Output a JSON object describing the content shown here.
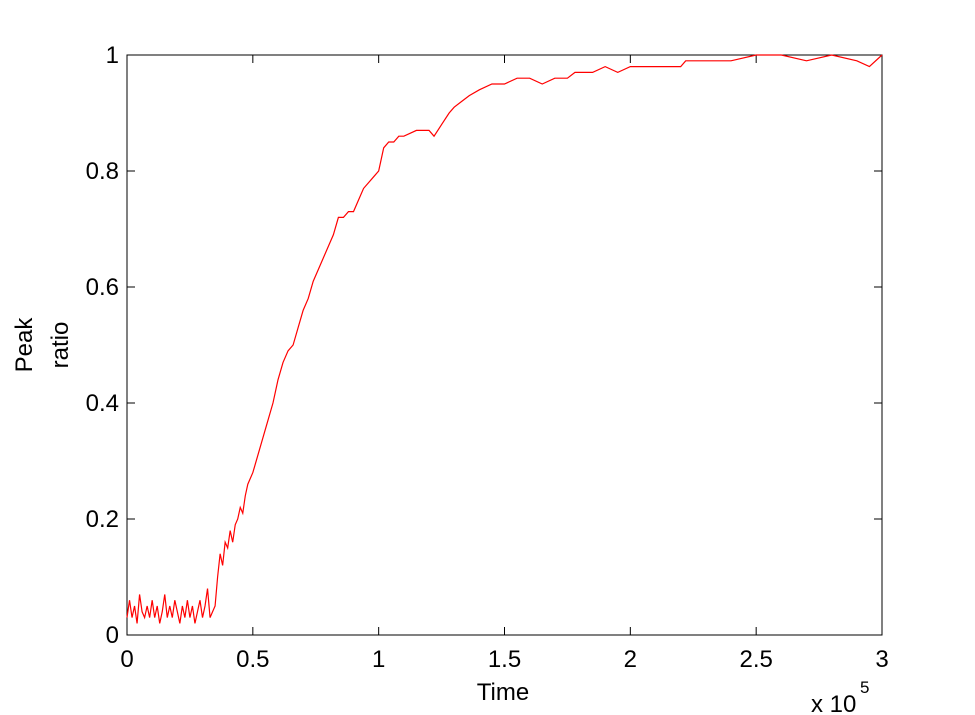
{
  "chart_data": {
    "type": "line",
    "xlabel": "Time",
    "ylabel": [
      "Peak",
      "ratio"
    ],
    "x_scale_label": "x 10",
    "x_scale_exponent": "5",
    "color": "#ff0000",
    "xlim": [
      0,
      3
    ],
    "xticks": [
      0,
      0.5,
      1,
      1.5,
      2,
      2.5,
      3
    ],
    "ylim": [
      0,
      1
    ],
    "yticks": [
      0,
      0.2,
      0.4,
      0.6,
      0.8,
      1
    ],
    "grid": false,
    "x": [
      0,
      0.01,
      0.02,
      0.03,
      0.04,
      0.05,
      0.06,
      0.07,
      0.08,
      0.09,
      0.1,
      0.11,
      0.12,
      0.13,
      0.14,
      0.15,
      0.16,
      0.17,
      0.18,
      0.19,
      0.2,
      0.21,
      0.22,
      0.23,
      0.24,
      0.25,
      0.26,
      0.27,
      0.28,
      0.29,
      0.3,
      0.31,
      0.32,
      0.33,
      0.34,
      0.35,
      0.36,
      0.37,
      0.38,
      0.39,
      0.4,
      0.41,
      0.42,
      0.43,
      0.44,
      0.45,
      0.46,
      0.47,
      0.48,
      0.5,
      0.52,
      0.54,
      0.56,
      0.58,
      0.6,
      0.62,
      0.64,
      0.66,
      0.68,
      0.7,
      0.72,
      0.74,
      0.76,
      0.78,
      0.8,
      0.82,
      0.84,
      0.86,
      0.88,
      0.9,
      0.92,
      0.94,
      0.96,
      0.98,
      1.0,
      1.02,
      1.04,
      1.06,
      1.08,
      1.1,
      1.15,
      1.2,
      1.22,
      1.25,
      1.28,
      1.3,
      1.33,
      1.36,
      1.4,
      1.45,
      1.5,
      1.55,
      1.6,
      1.65,
      1.7,
      1.75,
      1.78,
      1.85,
      1.9,
      1.95,
      2.0,
      2.1,
      2.2,
      2.22,
      2.3,
      2.4,
      2.5,
      2.6,
      2.7,
      2.8,
      2.9,
      2.95,
      3.0
    ],
    "values": [
      0.03,
      0.06,
      0.03,
      0.05,
      0.02,
      0.07,
      0.04,
      0.03,
      0.05,
      0.03,
      0.06,
      0.03,
      0.05,
      0.02,
      0.04,
      0.07,
      0.03,
      0.05,
      0.03,
      0.06,
      0.04,
      0.02,
      0.05,
      0.03,
      0.06,
      0.03,
      0.05,
      0.02,
      0.04,
      0.06,
      0.03,
      0.05,
      0.08,
      0.03,
      0.04,
      0.05,
      0.1,
      0.14,
      0.12,
      0.16,
      0.15,
      0.18,
      0.16,
      0.19,
      0.2,
      0.22,
      0.21,
      0.24,
      0.26,
      0.28,
      0.31,
      0.34,
      0.37,
      0.4,
      0.44,
      0.47,
      0.49,
      0.5,
      0.53,
      0.56,
      0.58,
      0.61,
      0.63,
      0.65,
      0.67,
      0.69,
      0.72,
      0.72,
      0.73,
      0.73,
      0.75,
      0.77,
      0.78,
      0.79,
      0.8,
      0.84,
      0.85,
      0.85,
      0.86,
      0.86,
      0.87,
      0.87,
      0.86,
      0.88,
      0.9,
      0.91,
      0.92,
      0.93,
      0.94,
      0.95,
      0.95,
      0.96,
      0.96,
      0.95,
      0.96,
      0.96,
      0.97,
      0.97,
      0.98,
      0.97,
      0.98,
      0.98,
      0.98,
      0.99,
      0.99,
      0.99,
      1.0,
      1.0,
      0.99,
      1.0,
      0.99,
      0.98,
      1.0
    ]
  }
}
